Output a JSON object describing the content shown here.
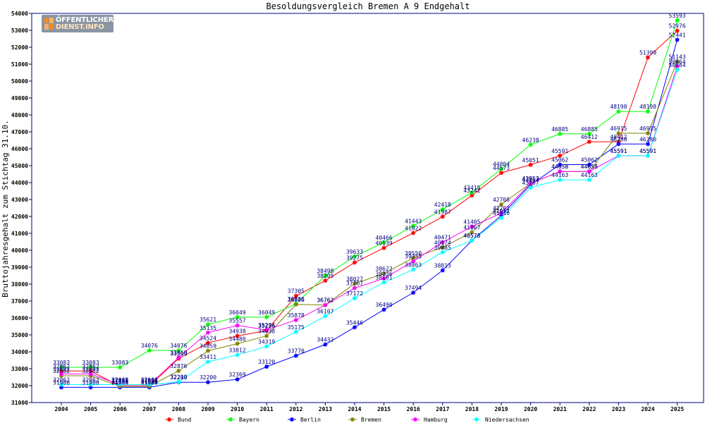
{
  "logo": {
    "line1": "ÖFFENTLICHER",
    "line2": "DIENST.INFO"
  },
  "chart_data": {
    "type": "line",
    "title": "Besoldungsvergleich Bremen A 9 Endgehalt",
    "xlabel": "",
    "ylabel": "Bruttojahresgehalt zum Stichtag 31.10.",
    "categories": [
      "2004",
      "2005",
      "2006",
      "2007",
      "2008",
      "2009",
      "2010",
      "2011",
      "2012",
      "2013",
      "2014",
      "2015",
      "2016",
      "2017",
      "2018",
      "2019",
      "2020",
      "2021",
      "2022",
      "2023",
      "2024",
      "2025"
    ],
    "ylim": [
      31000,
      54000
    ],
    "yticks": [
      31000,
      32000,
      33000,
      34000,
      35000,
      36000,
      37000,
      38000,
      39000,
      40000,
      41000,
      42000,
      43000,
      44000,
      45000,
      46000,
      47000,
      48000,
      49000,
      50000,
      51000,
      52000,
      53000,
      54000
    ],
    "grid": false,
    "legend_position": "bottom",
    "series": [
      {
        "name": "Bund",
        "color": "#ff0000",
        "values": [
          32862,
          32862,
          31973,
          31973,
          33599,
          34524,
          34938,
          35256,
          37305,
          38205,
          39275,
          40139,
          41022,
          41987,
          43242,
          44573,
          45051,
          45591,
          46412,
          46412,
          51399,
          52976
        ]
      },
      {
        "name": "Bayern",
        "color": "#00ff00",
        "values": [
          33083,
          33083,
          33083,
          34076,
          34076,
          35621,
          36049,
          36049,
          36836,
          38498,
          39633,
          40466,
          41443,
          42418,
          43415,
          44804,
          46238,
          46885,
          46885,
          48198,
          48198,
          53593
        ]
      },
      {
        "name": "Berlin",
        "color": "#0000ff",
        "values": [
          31900,
          31900,
          31900,
          31900,
          32200,
          32200,
          32369,
          33120,
          33770,
          34432,
          35446,
          36490,
          37494,
          38813,
          40578,
          42051,
          43867,
          45062,
          45062,
          46280,
          46280,
          52441
        ]
      },
      {
        "name": "Bremen",
        "color": "#808000",
        "values": [
          32582,
          32582,
          31960,
          31960,
          32876,
          34059,
          34480,
          34938,
          36800,
          36762,
          38027,
          38622,
          39550,
          40174,
          41067,
          42708,
          43952,
          44658,
          44658,
          46915,
          46915,
          51143
        ]
      },
      {
        "name": "Hamburg",
        "color": "#ff00ff",
        "values": [
          32692,
          32692,
          32048,
          32048,
          33660,
          35135,
          35557,
          35294,
          35878,
          36762,
          37767,
          38336,
          39355,
          40471,
          41405,
          42201,
          43952,
          44658,
          44658,
          45591,
          45591,
          50864
        ]
      },
      {
        "name": "Niedersachsen",
        "color": "#00ffff",
        "values": [
          32062,
          32062,
          32062,
          32062,
          32219,
          33411,
          33812,
          34319,
          35175,
          36107,
          37172,
          38101,
          38863,
          39885,
          40573,
          41916,
          43707,
          44163,
          44163,
          45591,
          45591,
          50664
        ]
      }
    ]
  }
}
